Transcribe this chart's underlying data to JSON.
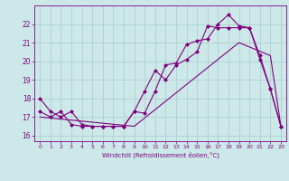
{
  "xlabel": "Windchill (Refroidissement éolien,°C)",
  "bg_color": "#cce8e8",
  "line_color": "#800080",
  "grid_color": "#aacccc",
  "xlim": [
    -0.5,
    23.5
  ],
  "ylim": [
    15.7,
    23.0
  ],
  "yticks": [
    16,
    17,
    18,
    19,
    20,
    21,
    22
  ],
  "xticks": [
    0,
    1,
    2,
    3,
    4,
    5,
    6,
    7,
    8,
    9,
    10,
    11,
    12,
    13,
    14,
    15,
    16,
    17,
    18,
    19,
    20,
    21,
    22,
    23
  ],
  "line1_x": [
    0,
    1,
    2,
    3,
    4,
    5,
    6,
    7,
    8,
    9,
    10,
    11,
    12,
    13,
    14,
    15,
    16,
    17,
    18,
    19,
    20,
    21,
    22,
    23
  ],
  "line1_y": [
    18.0,
    17.3,
    17.0,
    17.3,
    16.6,
    16.5,
    16.5,
    16.5,
    16.5,
    17.3,
    17.2,
    18.4,
    19.8,
    19.9,
    20.9,
    21.1,
    21.2,
    22.0,
    22.5,
    21.9,
    21.8,
    20.1,
    18.5,
    16.5
  ],
  "line2_x": [
    0,
    1,
    2,
    3,
    4,
    5,
    6,
    7,
    8,
    9,
    10,
    11,
    12,
    13,
    14,
    15,
    16,
    17,
    18,
    19,
    20,
    21,
    22,
    23
  ],
  "line2_y": [
    17.3,
    17.0,
    17.3,
    16.6,
    16.5,
    16.5,
    16.5,
    16.5,
    16.5,
    17.3,
    18.4,
    19.5,
    19.0,
    19.8,
    20.1,
    20.5,
    21.9,
    21.8,
    21.8,
    21.8,
    21.8,
    20.3,
    18.5,
    16.5
  ],
  "line3_x": [
    0,
    9,
    19,
    22,
    23
  ],
  "line3_y": [
    17.0,
    16.5,
    21.0,
    20.3,
    16.5
  ]
}
